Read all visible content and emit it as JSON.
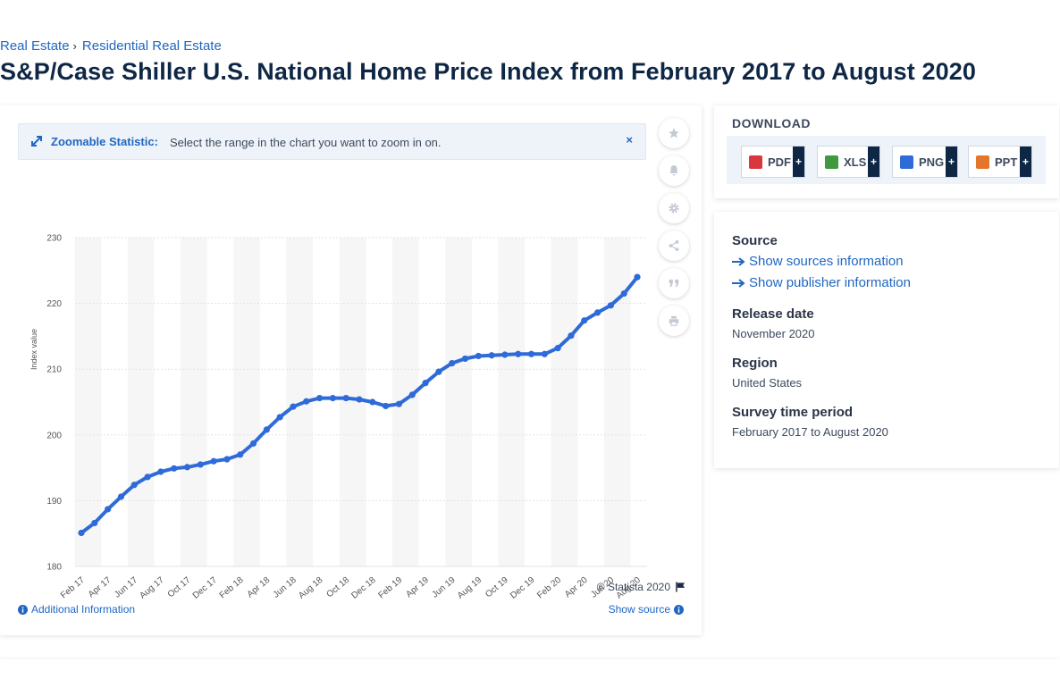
{
  "breadcrumb": {
    "item1": "Real Estate",
    "separator": "›",
    "item2": "Residential Real Estate"
  },
  "page_title": "S&P/Case Shiller U.S. National Home Price Index from February 2017 to August 2020",
  "zoom_banner": {
    "title": "Zoomable Statistic:",
    "text": "Select the range in the chart you want to zoom in on.",
    "close": "×"
  },
  "toolbar_icons": [
    "star-icon",
    "bell-icon",
    "gear-icon",
    "share-icon",
    "quote-icon",
    "print-icon"
  ],
  "chart_data": {
    "type": "line",
    "title": "",
    "xlabel": "",
    "ylabel": "Index value",
    "ylim": [
      180,
      230
    ],
    "yticks": [
      180,
      190,
      200,
      210,
      220,
      230
    ],
    "grid": true,
    "legend": "none",
    "x": [
      "Feb 17",
      "Mar 17",
      "Apr 17",
      "May 17",
      "Jun 17",
      "Jul 17",
      "Aug 17",
      "Sep 17",
      "Oct 17",
      "Nov 17",
      "Dec 17",
      "Jan 18",
      "Feb 18",
      "Mar 18",
      "Apr 18",
      "May 18",
      "Jun 18",
      "Jul 18",
      "Aug 18",
      "Sep 18",
      "Oct 18",
      "Nov 18",
      "Dec 18",
      "Jan 19",
      "Feb 19",
      "Mar 19",
      "Apr 19",
      "May 19",
      "Jun 19",
      "Jul 19",
      "Aug 19",
      "Sep 19",
      "Oct 19",
      "Nov 19",
      "Dec 19",
      "Jan 20",
      "Feb 20",
      "Mar 20",
      "Apr 20",
      "May 20",
      "Jun 20",
      "Jul 20",
      "Aug 20"
    ],
    "xtick_labels": [
      "Feb 17",
      "Apr 17",
      "Jun 17",
      "Aug 17",
      "Oct 17",
      "Dec 17",
      "Feb 18",
      "Apr 18",
      "Jun 18",
      "Aug 18",
      "Oct 18",
      "Dec 18",
      "Feb 19",
      "Apr 19",
      "Jun 19",
      "Aug 19",
      "Oct 19",
      "Dec 19",
      "Feb 20",
      "Apr 20",
      "Jun 20",
      "Aug 20"
    ],
    "series": [
      {
        "values": [
          185.1,
          186.6,
          188.7,
          190.6,
          192.4,
          193.6,
          194.4,
          194.9,
          195.1,
          195.5,
          196.0,
          196.3,
          197.0,
          198.7,
          200.8,
          202.7,
          204.3,
          205.1,
          205.6,
          205.6,
          205.6,
          205.4,
          205.0,
          204.4,
          204.7,
          206.1,
          207.9,
          209.6,
          210.9,
          211.6,
          212.0,
          212.1,
          212.2,
          212.3,
          212.3,
          212.3,
          213.2,
          215.1,
          217.4,
          218.6,
          219.7,
          221.5,
          224.0
        ]
      }
    ],
    "colors": {
      "line": "#2f6bd8",
      "grid": "#dfe3e8",
      "band": "#f6f6f6"
    }
  },
  "footer": {
    "copyright": "© Statista 2020",
    "additional_info": "Additional Information",
    "show_source": "Show source"
  },
  "download": {
    "title": "DOWNLOAD",
    "buttons": [
      {
        "label": "PDF",
        "plus": "+",
        "color": "#d9363e"
      },
      {
        "label": "XLS",
        "plus": "+",
        "color": "#3f9a3f"
      },
      {
        "label": "PNG",
        "plus": "+",
        "color": "#2f6bd8"
      },
      {
        "label": "PPT",
        "plus": "+",
        "color": "#e4762c"
      }
    ]
  },
  "meta": {
    "source_heading": "Source",
    "show_sources": "Show sources information",
    "show_publisher": "Show publisher information",
    "release_heading": "Release date",
    "release_value": "November 2020",
    "region_heading": "Region",
    "region_value": "United States",
    "period_heading": "Survey time period",
    "period_value": "February 2017 to August 2020"
  }
}
